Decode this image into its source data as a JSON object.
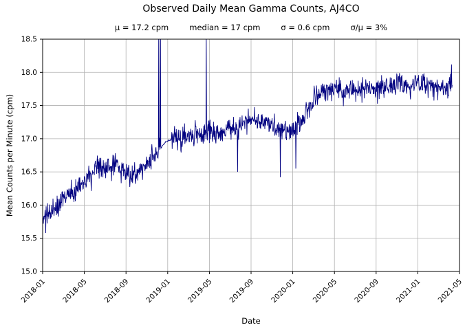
{
  "figure": {
    "title": "Observed Daily Mean Gamma Counts, AJ4CO",
    "stats": [
      "μ = 17.2 cpm",
      "median = 17 cpm",
      "σ = 0.6 cpm",
      "σ/μ = 3%"
    ]
  },
  "chart_data": {
    "type": "line",
    "title": "Observed Daily Mean Gamma Counts, AJ4CO",
    "subtitle": "μ = 17.2 cpm    median = 17 cpm    σ = 0.6 cpm    σ/μ = 3%",
    "stats": {
      "mu_cpm": 17.2,
      "median_cpm": 17,
      "sigma_cpm": 0.6,
      "sigma_over_mu_pct": 3
    },
    "xlabel": "Date",
    "ylabel": "Mean Counts per Minute (cpm)",
    "line_color": "#000080",
    "grid": true,
    "grid_color": "#b0b0b0",
    "axes_color": "#000000",
    "legend": "none",
    "ylim": [
      15.0,
      18.5
    ],
    "yticks": [
      15.0,
      15.5,
      16.0,
      16.5,
      17.0,
      17.5,
      18.0,
      18.5
    ],
    "xlim_months": [
      0,
      40
    ],
    "x_epoch": "2018-01",
    "xticks": [
      {
        "label": "2018-01",
        "m": 0
      },
      {
        "label": "2018-05",
        "m": 4
      },
      {
        "label": "2018-09",
        "m": 8
      },
      {
        "label": "2019-01",
        "m": 12
      },
      {
        "label": "2019-05",
        "m": 16
      },
      {
        "label": "2019-09",
        "m": 20
      },
      {
        "label": "2020-01",
        "m": 24
      },
      {
        "label": "2020-05",
        "m": 28
      },
      {
        "label": "2020-09",
        "m": 32
      },
      {
        "label": "2021-01",
        "m": 36
      },
      {
        "label": "2021-05",
        "m": 40
      }
    ],
    "series": {
      "name": "daily mean gamma counts (cpm)",
      "n_points": 1190,
      "m_start": 0,
      "m_end": 39.3,
      "noise_amp": 0.17,
      "anchors": [
        [
          0,
          15.8
        ],
        [
          0.5,
          15.82
        ],
        [
          1,
          15.95
        ],
        [
          2,
          16.1
        ],
        [
          3,
          16.22
        ],
        [
          4,
          16.35
        ],
        [
          5,
          16.5
        ],
        [
          6,
          16.55
        ],
        [
          7,
          16.62
        ],
        [
          8,
          16.5
        ],
        [
          8.7,
          16.42
        ],
        [
          9.3,
          16.55
        ],
        [
          10,
          16.62
        ],
        [
          11,
          16.8
        ],
        [
          11.8,
          16.95
        ],
        [
          12.5,
          17.0
        ],
        [
          13,
          17.0
        ],
        [
          14,
          17.05
        ],
        [
          15,
          17.05
        ],
        [
          16,
          17.12
        ],
        [
          17,
          17.08
        ],
        [
          18,
          17.15
        ],
        [
          19,
          17.2
        ],
        [
          20,
          17.3
        ],
        [
          21,
          17.28
        ],
        [
          22,
          17.2
        ],
        [
          23,
          17.12
        ],
        [
          24,
          17.1
        ],
        [
          25,
          17.3
        ],
        [
          26,
          17.6
        ],
        [
          27,
          17.72
        ],
        [
          28,
          17.75
        ],
        [
          29,
          17.7
        ],
        [
          30,
          17.73
        ],
        [
          31,
          17.78
        ],
        [
          32,
          17.72
        ],
        [
          33,
          17.78
        ],
        [
          34,
          17.8
        ],
        [
          35,
          17.82
        ],
        [
          36,
          17.83
        ],
        [
          37,
          17.8
        ],
        [
          38,
          17.78
        ],
        [
          39,
          17.8
        ],
        [
          39.3,
          17.85
        ]
      ],
      "smooth_segments": [
        {
          "from": 11.35,
          "to": 12.35,
          "noise_scale": 0.06
        }
      ],
      "spikes": [
        [
          0.3,
          15.58
        ],
        [
          11.15,
          18.7
        ],
        [
          11.3,
          18.9
        ],
        [
          15.7,
          18.6
        ],
        [
          18.7,
          16.5
        ],
        [
          22.8,
          16.42
        ],
        [
          24.3,
          16.55
        ],
        [
          39.25,
          18.12
        ]
      ]
    }
  }
}
